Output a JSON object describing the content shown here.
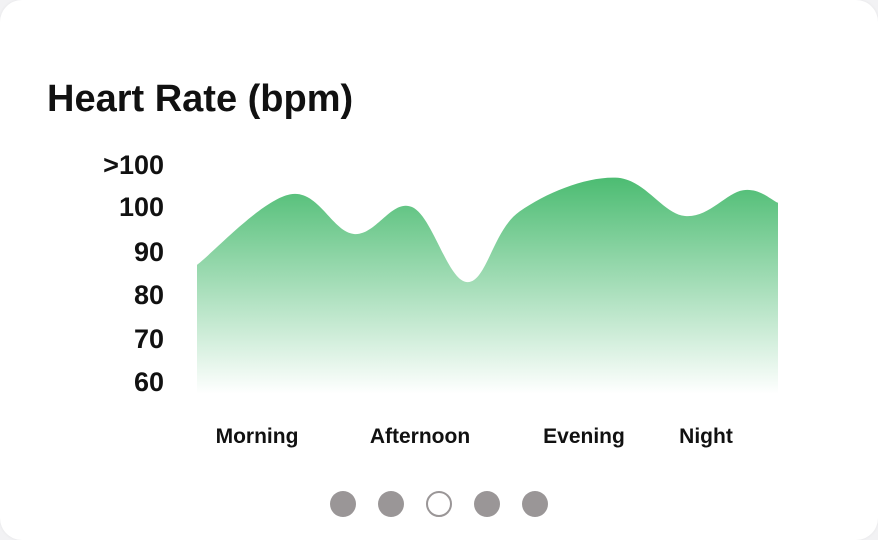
{
  "card": {
    "title": "Heart Rate (bpm)"
  },
  "pagination": {
    "count": 5,
    "active_index": 2
  },
  "colors": {
    "area_top": "#4cbc72",
    "area_bottom": "#ffffff",
    "dot": "#9a9697"
  },
  "chart_data": {
    "type": "area",
    "title": "Heart Rate (bpm)",
    "xlabel": "",
    "ylabel": "",
    "y_ticks": [
      ">100",
      "100",
      "90",
      "80",
      "70",
      "60"
    ],
    "y_tick_values": [
      110,
      100,
      90,
      80,
      70,
      60
    ],
    "ylim": [
      60,
      110
    ],
    "x_ticks": [
      "Morning",
      "Afternoon",
      "Evening",
      "Night"
    ],
    "grid": false,
    "legend": "none",
    "series": [
      {
        "points": [
          {
            "x": 0.0,
            "y": 87
          },
          {
            "x": 0.16,
            "y": 103
          },
          {
            "x": 0.27,
            "y": 94
          },
          {
            "x": 0.37,
            "y": 100
          },
          {
            "x": 0.465,
            "y": 83
          },
          {
            "x": 0.555,
            "y": 99
          },
          {
            "x": 0.72,
            "y": 107
          },
          {
            "x": 0.84,
            "y": 98
          },
          {
            "x": 0.94,
            "y": 104
          },
          {
            "x": 1.0,
            "y": 101
          }
        ]
      }
    ]
  }
}
